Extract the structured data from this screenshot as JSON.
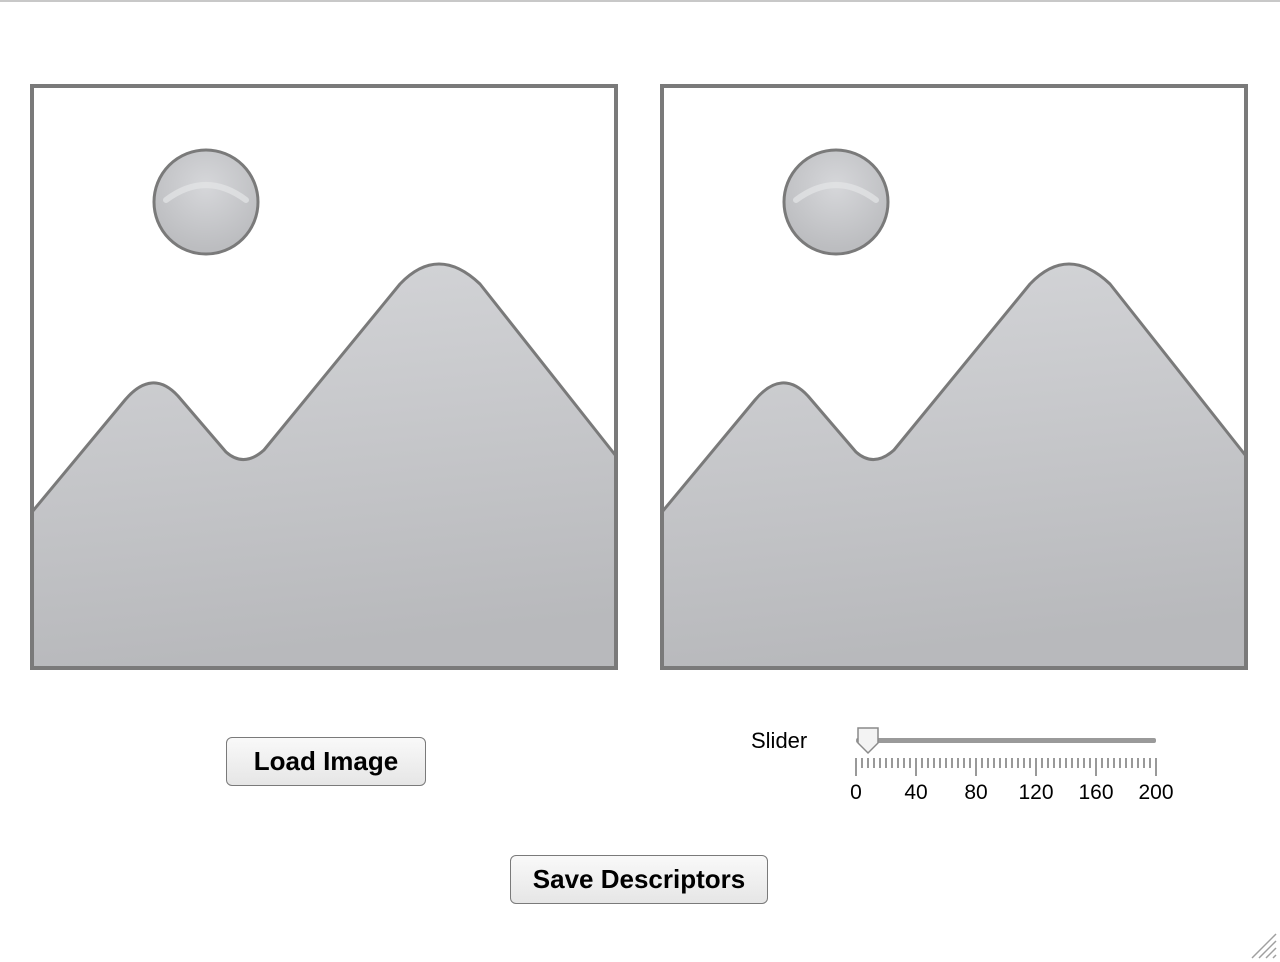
{
  "buttons": {
    "load_image": "Load Image",
    "save_descriptors": "Save Descriptors"
  },
  "slider": {
    "label": "Slider",
    "min": 0,
    "max": 200,
    "value": 0,
    "tick_labels": [
      "0",
      "40",
      "80",
      "120",
      "160",
      "200"
    ]
  },
  "placeholders": {
    "left_icon": "image-placeholder-icon",
    "right_icon": "image-placeholder-icon"
  },
  "colors": {
    "placeholder_fill": "#c8c9cc",
    "placeholder_stroke": "#7a7a7a"
  }
}
